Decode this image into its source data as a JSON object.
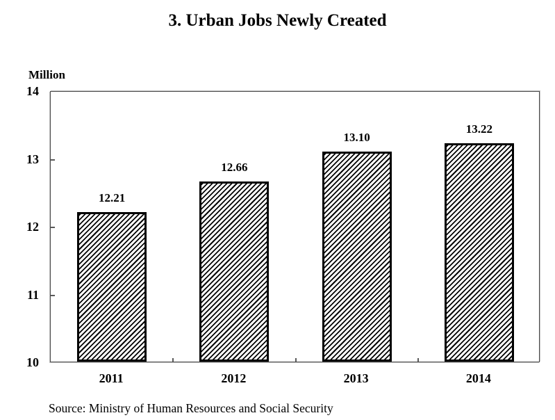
{
  "chart_data": {
    "type": "bar",
    "title": "3. Urban Jobs Newly Created",
    "unit_label": "Million",
    "categories": [
      "2011",
      "2012",
      "2013",
      "2014"
    ],
    "values": [
      12.21,
      12.66,
      13.1,
      13.22
    ],
    "value_labels": [
      "12.21",
      "12.66",
      "13.10",
      "13.22"
    ],
    "xlabel": "",
    "ylabel": "Million",
    "ylim": [
      10,
      14
    ],
    "yticks": [
      10,
      11,
      12,
      13,
      14
    ],
    "grid": "off",
    "legend": "none",
    "source": "Source: Ministry of Human Resources and Social Security",
    "colors": {
      "background": "#ffffff",
      "text": "#000000",
      "bar_fill": "#ffffff",
      "bar_hatch": "#000000",
      "bar_border": "#000000",
      "axis_frame": "#4a4a4a",
      "tick": "#595959"
    },
    "bar_style": "diagonal-hatch"
  }
}
